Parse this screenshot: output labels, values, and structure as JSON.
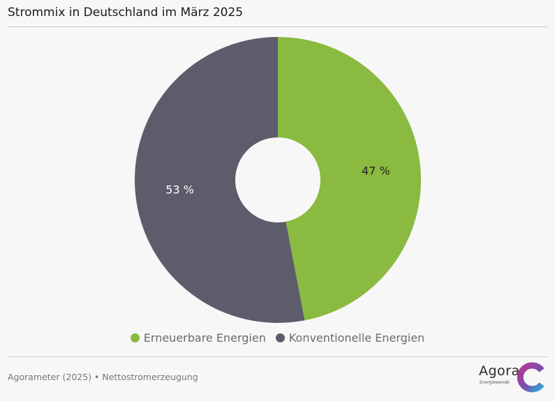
{
  "title": "Strommix in Deutschland im März 2025",
  "source": "Agorameter (2025) • Nettostromerzeugung",
  "logo": {
    "name": "Agora",
    "sub": "Energiewende",
    "icon": "agora-logo-icon"
  },
  "chart_data": {
    "type": "pie",
    "variant": "donut",
    "title": "Strommix in Deutschland im März 2025",
    "legend_position": "bottom",
    "slices": [
      {
        "name": "Erneuerbare Energien",
        "value": 47,
        "label": "47 %",
        "color": "#8aba3f"
      },
      {
        "name": "Konventionelle Energien",
        "value": 53,
        "label": "53 %",
        "color": "#5c5c6b"
      }
    ]
  }
}
